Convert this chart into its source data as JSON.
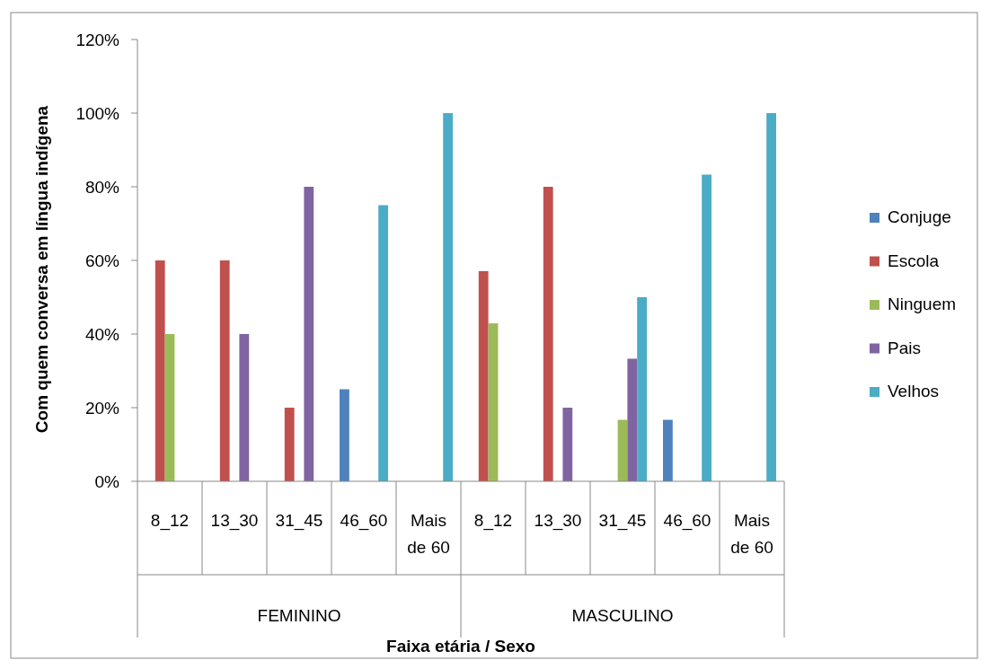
{
  "chart_data": {
    "type": "bar",
    "ylabel": "Com quem conversa em língua indígena",
    "xlabel": "Faixa etária / Sexo",
    "categories": [
      "8_12",
      "13_30",
      "31_45",
      "46_60",
      "Mais de 60",
      "8_12",
      "13_30",
      "31_45",
      "46_60",
      "Mais de 60"
    ],
    "annotations": [
      "FEMININO",
      "MASCULINO"
    ],
    "series": [
      {
        "name": "Conjuge",
        "color": "#4f81bd",
        "values": [
          null,
          null,
          null,
          25,
          null,
          null,
          null,
          null,
          16.7,
          null
        ]
      },
      {
        "name": "Escola",
        "color": "#c0504d",
        "values": [
          60,
          60,
          20,
          null,
          null,
          57.1,
          80,
          null,
          null,
          null
        ]
      },
      {
        "name": "Ninguem",
        "color": "#9bbb59",
        "values": [
          40,
          null,
          null,
          null,
          null,
          42.9,
          null,
          16.7,
          null,
          null
        ]
      },
      {
        "name": "Pais",
        "color": "#8064a2",
        "values": [
          null,
          40,
          80,
          null,
          null,
          null,
          20,
          33.3,
          null,
          null
        ]
      },
      {
        "name": "Velhos",
        "color": "#4bacc6",
        "values": [
          null,
          null,
          null,
          75,
          100,
          null,
          null,
          50,
          83.3,
          100
        ]
      }
    ],
    "ylim": [
      0,
      120
    ],
    "yticks": [
      {
        "value": 0,
        "label": "0%"
      },
      {
        "value": 20,
        "label": "20%"
      },
      {
        "value": 40,
        "label": "40%"
      },
      {
        "value": 60,
        "label": "60%"
      },
      {
        "value": 80,
        "label": "80%"
      },
      {
        "value": 100,
        "label": "100%"
      },
      {
        "value": 120,
        "label": "120%"
      }
    ],
    "grid": false,
    "legend": "right"
  }
}
